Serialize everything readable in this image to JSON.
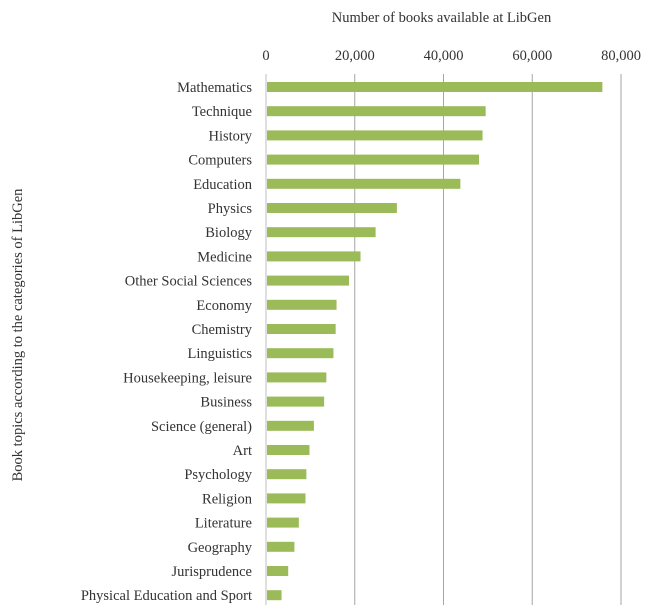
{
  "chart_data": {
    "type": "bar",
    "orientation": "horizontal",
    "xlabel": "Number of books available at LibGen",
    "ylabel": "Book topics according to the categories of LibGen",
    "xlim": [
      0,
      80000
    ],
    "x_ticks": [
      0,
      20000,
      40000,
      60000,
      80000
    ],
    "x_tick_labels": [
      "0",
      "20,000",
      "40,000",
      "60,000",
      "80,000"
    ],
    "x_axis_position": "top",
    "grid": "vertical",
    "bar_color": "#9bbb59",
    "categories": [
      "Mathematics",
      "Technique",
      "History",
      "Computers",
      "Education",
      "Physics",
      "Biology",
      "Medicine",
      "Other Social Sciences",
      "Economy",
      "Chemistry",
      "Linguistics",
      "Housekeeping, leisure",
      "Business",
      "Science (general)",
      "Art",
      "Psychology",
      "Religion",
      "Literature",
      "Geography",
      "Jurisprudence",
      "Physical Education and Sport"
    ],
    "values": [
      75800,
      49500,
      48800,
      48000,
      43800,
      29500,
      24700,
      21300,
      18700,
      15900,
      15700,
      15200,
      13600,
      13100,
      10800,
      9800,
      9100,
      8900,
      7400,
      6400,
      5000,
      3500
    ]
  }
}
